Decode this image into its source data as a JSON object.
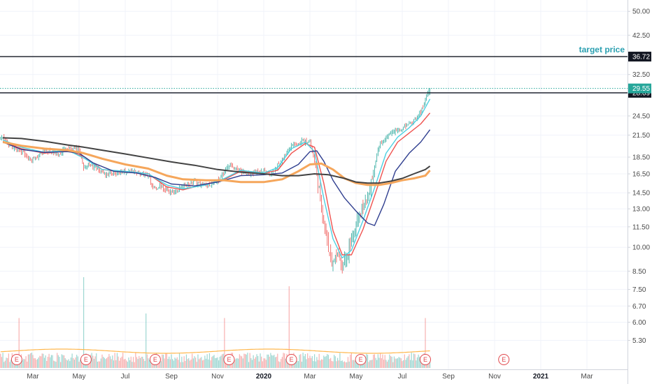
{
  "chart_data": {
    "type": "line",
    "subtype": "candlestick-with-moving-averages",
    "y_scale": "log",
    "ylim": [
      4.9,
      52.5
    ],
    "y_ticks": [
      5.3,
      6.0,
      6.7,
      7.5,
      8.5,
      10.0,
      11.5,
      13.0,
      14.5,
      16.5,
      18.5,
      21.5,
      24.5,
      28.5,
      32.5,
      42.5,
      50.0
    ],
    "y_tick_labels": [
      "5.30",
      "6.00",
      "6.70",
      "7.50",
      "8.50",
      "10.00",
      "11.50",
      "13.00",
      "14.50",
      "16.50",
      "18.50",
      "21.50",
      "24.50",
      "28.50",
      "32.50",
      "42.50",
      "50.00"
    ],
    "x_ticks": [
      {
        "label": "Mar",
        "month_index": 1,
        "bold": false
      },
      {
        "label": "May",
        "month_index": 3,
        "bold": false
      },
      {
        "label": "Jul",
        "month_index": 5,
        "bold": false
      },
      {
        "label": "Sep",
        "month_index": 7,
        "bold": false
      },
      {
        "label": "Nov",
        "month_index": 9,
        "bold": false
      },
      {
        "label": "2020",
        "month_index": 11,
        "bold": true
      },
      {
        "label": "Mar",
        "month_index": 13,
        "bold": false
      },
      {
        "label": "May",
        "month_index": 15,
        "bold": false
      },
      {
        "label": "Jul",
        "month_index": 17,
        "bold": false
      },
      {
        "label": "Sep",
        "month_index": 19,
        "bold": false
      },
      {
        "label": "Nov",
        "month_index": 21,
        "bold": false
      },
      {
        "label": "2021",
        "month_index": 23,
        "bold": true
      },
      {
        "label": "Mar",
        "month_index": 25,
        "bold": false
      }
    ],
    "xlim": [
      0,
      26.2
    ],
    "horizontal_lines": [
      {
        "value": 36.72,
        "label": "36.72",
        "style": "solid",
        "color": "#131722",
        "tag_bg": "#131722"
      },
      {
        "value": 28.69,
        "label": "28.69",
        "style": "solid",
        "color": "#131722",
        "tag_bg": "#131722"
      },
      {
        "value": 29.55,
        "label": "29.55",
        "style": "dotted",
        "color": "#26a69a",
        "tag_bg": "#26a69a"
      }
    ],
    "annotations": [
      {
        "text": "target price",
        "near_value": 36.72
      }
    ],
    "price_series": {
      "name": "",
      "up_color": "#26a69a",
      "down_color": "#ef5350",
      "points": [
        [
          -0.3,
          21.0
        ],
        [
          0.0,
          20.0
        ],
        [
          0.3,
          19.5
        ],
        [
          0.6,
          19.0
        ],
        [
          0.9,
          18.0
        ],
        [
          1.2,
          18.6
        ],
        [
          1.5,
          19.3
        ],
        [
          1.8,
          19.1
        ],
        [
          2.1,
          18.8
        ],
        [
          2.4,
          19.5
        ],
        [
          2.7,
          19.6
        ],
        [
          3.0,
          19.4
        ],
        [
          3.2,
          17.2
        ],
        [
          3.4,
          17.6
        ],
        [
          3.7,
          17.1
        ],
        [
          4.0,
          16.7
        ],
        [
          4.3,
          16.3
        ],
        [
          4.6,
          16.6
        ],
        [
          4.9,
          16.8
        ],
        [
          5.2,
          16.9
        ],
        [
          5.5,
          16.6
        ],
        [
          5.8,
          16.4
        ],
        [
          6.0,
          16.4
        ],
        [
          6.2,
          15.0
        ],
        [
          6.5,
          15.1
        ],
        [
          6.8,
          14.7
        ],
        [
          7.1,
          14.5
        ],
        [
          7.4,
          15.1
        ],
        [
          7.7,
          15.3
        ],
        [
          8.0,
          15.6
        ],
        [
          8.3,
          15.4
        ],
        [
          8.6,
          15.3
        ],
        [
          8.9,
          15.6
        ],
        [
          9.1,
          16.0
        ],
        [
          9.4,
          17.2
        ],
        [
          9.6,
          17.3
        ],
        [
          9.9,
          16.9
        ],
        [
          10.2,
          16.6
        ],
        [
          10.5,
          16.5
        ],
        [
          10.8,
          16.7
        ],
        [
          11.0,
          16.8
        ],
        [
          11.3,
          16.4
        ],
        [
          11.6,
          17.5
        ],
        [
          11.9,
          18.7
        ],
        [
          12.2,
          20.0
        ],
        [
          12.5,
          20.3
        ],
        [
          12.7,
          20.6
        ],
        [
          13.0,
          20.5
        ],
        [
          13.2,
          18.0
        ],
        [
          13.4,
          15.0
        ],
        [
          13.6,
          12.0
        ],
        [
          13.8,
          9.8
        ],
        [
          14.0,
          8.9
        ],
        [
          14.2,
          9.5
        ],
        [
          14.4,
          8.7
        ],
        [
          14.6,
          9.3
        ],
        [
          14.8,
          10.6
        ],
        [
          15.0,
          11.6
        ],
        [
          15.2,
          12.8
        ],
        [
          15.4,
          13.6
        ],
        [
          15.6,
          14.9
        ],
        [
          15.8,
          17.5
        ],
        [
          16.0,
          20.0
        ],
        [
          16.3,
          21.0
        ],
        [
          16.6,
          22.2
        ],
        [
          16.9,
          22.2
        ],
        [
          17.2,
          23.1
        ],
        [
          17.5,
          23.6
        ],
        [
          17.8,
          25.2
        ],
        [
          18.0,
          27.5
        ],
        [
          18.2,
          29.5
        ]
      ]
    },
    "moving_averages": [
      {
        "name": "",
        "color": "#ef5350",
        "points": [
          [
            -0.3,
            20.6
          ],
          [
            0.5,
            19.6
          ],
          [
            1.5,
            19.0
          ],
          [
            2.5,
            19.3
          ],
          [
            3.2,
            18.6
          ],
          [
            4.0,
            17.0
          ],
          [
            5.0,
            16.7
          ],
          [
            6.0,
            16.5
          ],
          [
            6.8,
            15.1
          ],
          [
            7.5,
            14.8
          ],
          [
            8.5,
            15.4
          ],
          [
            9.3,
            15.9
          ],
          [
            10.0,
            16.8
          ],
          [
            11.0,
            16.6
          ],
          [
            11.6,
            16.9
          ],
          [
            12.2,
            19.0
          ],
          [
            12.8,
            20.3
          ],
          [
            13.2,
            19.8
          ],
          [
            13.6,
            15.5
          ],
          [
            14.0,
            11.2
          ],
          [
            14.4,
            9.5
          ],
          [
            14.8,
            9.5
          ],
          [
            15.3,
            11.3
          ],
          [
            15.8,
            14.2
          ],
          [
            16.3,
            18.0
          ],
          [
            16.8,
            20.5
          ],
          [
            17.3,
            21.8
          ],
          [
            17.8,
            23.2
          ],
          [
            18.2,
            25.0
          ]
        ]
      },
      {
        "name": "",
        "color": "#4dd0e1",
        "points": [
          [
            -0.3,
            20.8
          ],
          [
            0.5,
            19.8
          ],
          [
            1.5,
            19.1
          ],
          [
            2.5,
            19.4
          ],
          [
            3.2,
            18.4
          ],
          [
            4.0,
            17.0
          ],
          [
            5.0,
            16.8
          ],
          [
            6.0,
            16.5
          ],
          [
            6.8,
            15.3
          ],
          [
            7.5,
            14.9
          ],
          [
            8.5,
            15.3
          ],
          [
            9.3,
            16.0
          ],
          [
            10.0,
            16.9
          ],
          [
            11.0,
            16.6
          ],
          [
            11.6,
            17.2
          ],
          [
            12.2,
            19.6
          ],
          [
            12.8,
            20.5
          ],
          [
            13.2,
            19.2
          ],
          [
            13.6,
            14.0
          ],
          [
            14.0,
            10.6
          ],
          [
            14.4,
            9.3
          ],
          [
            14.8,
            9.8
          ],
          [
            15.3,
            12.0
          ],
          [
            15.8,
            15.0
          ],
          [
            16.3,
            19.0
          ],
          [
            16.8,
            21.2
          ],
          [
            17.3,
            22.6
          ],
          [
            17.8,
            24.5
          ],
          [
            18.2,
            27.5
          ]
        ]
      },
      {
        "name": "",
        "color": "#2f3e8f",
        "points": [
          [
            -0.3,
            20.5
          ],
          [
            0.5,
            19.5
          ],
          [
            1.5,
            19.1
          ],
          [
            2.5,
            19.2
          ],
          [
            3.0,
            19.0
          ],
          [
            3.6,
            17.8
          ],
          [
            4.5,
            16.8
          ],
          [
            5.5,
            16.6
          ],
          [
            6.3,
            16.1
          ],
          [
            7.0,
            15.4
          ],
          [
            8.0,
            15.2
          ],
          [
            9.0,
            15.6
          ],
          [
            10.0,
            16.3
          ],
          [
            11.0,
            16.4
          ],
          [
            11.8,
            16.6
          ],
          [
            12.5,
            17.6
          ],
          [
            13.0,
            19.2
          ],
          [
            13.3,
            19.3
          ],
          [
            13.6,
            18.0
          ],
          [
            14.0,
            15.8
          ],
          [
            14.5,
            14.0
          ],
          [
            15.0,
            12.8
          ],
          [
            15.5,
            11.8
          ],
          [
            15.8,
            11.6
          ],
          [
            16.2,
            13.4
          ],
          [
            16.7,
            16.8
          ],
          [
            17.3,
            19.0
          ],
          [
            17.8,
            20.5
          ],
          [
            18.2,
            22.3
          ]
        ]
      },
      {
        "name": "",
        "color": "#f5a65b",
        "points": [
          [
            -0.3,
            20.5
          ],
          [
            0.5,
            20.0
          ],
          [
            1.5,
            19.6
          ],
          [
            2.5,
            19.4
          ],
          [
            3.2,
            19.0
          ],
          [
            4.0,
            18.3
          ],
          [
            5.0,
            17.6
          ],
          [
            6.0,
            17.1
          ],
          [
            6.8,
            16.3
          ],
          [
            7.5,
            15.9
          ],
          [
            8.5,
            15.8
          ],
          [
            9.3,
            15.8
          ],
          [
            10.0,
            15.6
          ],
          [
            11.0,
            15.6
          ],
          [
            11.8,
            15.9
          ],
          [
            12.5,
            16.8
          ],
          [
            13.0,
            17.6
          ],
          [
            13.5,
            17.7
          ],
          [
            14.0,
            17.0
          ],
          [
            14.5,
            16.0
          ],
          [
            15.0,
            15.5
          ],
          [
            15.5,
            15.3
          ],
          [
            16.0,
            15.3
          ],
          [
            16.5,
            15.5
          ],
          [
            17.0,
            15.8
          ],
          [
            17.5,
            16.0
          ],
          [
            18.0,
            16.3
          ],
          [
            18.2,
            16.9
          ]
        ]
      },
      {
        "name": "",
        "color": "#424242",
        "points": [
          [
            -0.3,
            21.1
          ],
          [
            0.5,
            21.0
          ],
          [
            1.5,
            20.6
          ],
          [
            2.5,
            20.1
          ],
          [
            3.2,
            19.8
          ],
          [
            4.0,
            19.4
          ],
          [
            5.0,
            18.9
          ],
          [
            6.0,
            18.4
          ],
          [
            7.0,
            17.9
          ],
          [
            8.0,
            17.5
          ],
          [
            9.0,
            17.0
          ],
          [
            10.0,
            16.7
          ],
          [
            11.0,
            16.5
          ],
          [
            11.8,
            16.3
          ],
          [
            12.5,
            16.3
          ],
          [
            13.2,
            16.5
          ],
          [
            13.8,
            16.4
          ],
          [
            14.5,
            16.0
          ],
          [
            15.0,
            15.6
          ],
          [
            15.5,
            15.5
          ],
          [
            16.0,
            15.5
          ],
          [
            16.5,
            15.7
          ],
          [
            17.0,
            16.0
          ],
          [
            17.5,
            16.5
          ],
          [
            18.0,
            17.0
          ],
          [
            18.2,
            17.4
          ]
        ]
      }
    ],
    "volume": {
      "up_color": "#26a69a",
      "down_color": "#ef5350",
      "spikes": [
        [
          0.4,
          0.55,
          "down"
        ],
        [
          3.2,
          1.0,
          "up"
        ],
        [
          5.9,
          0.6,
          "up"
        ],
        [
          9.3,
          0.55,
          "down"
        ],
        [
          12.1,
          0.9,
          "down"
        ],
        [
          18.0,
          0.55,
          "down"
        ]
      ]
    },
    "volume_ma_color": "#ffb74d",
    "earnings_markers": {
      "label": "E",
      "month_index": [
        0.3,
        3.3,
        6.3,
        9.5,
        12.2,
        15.2,
        18.0,
        21.4
      ]
    }
  }
}
